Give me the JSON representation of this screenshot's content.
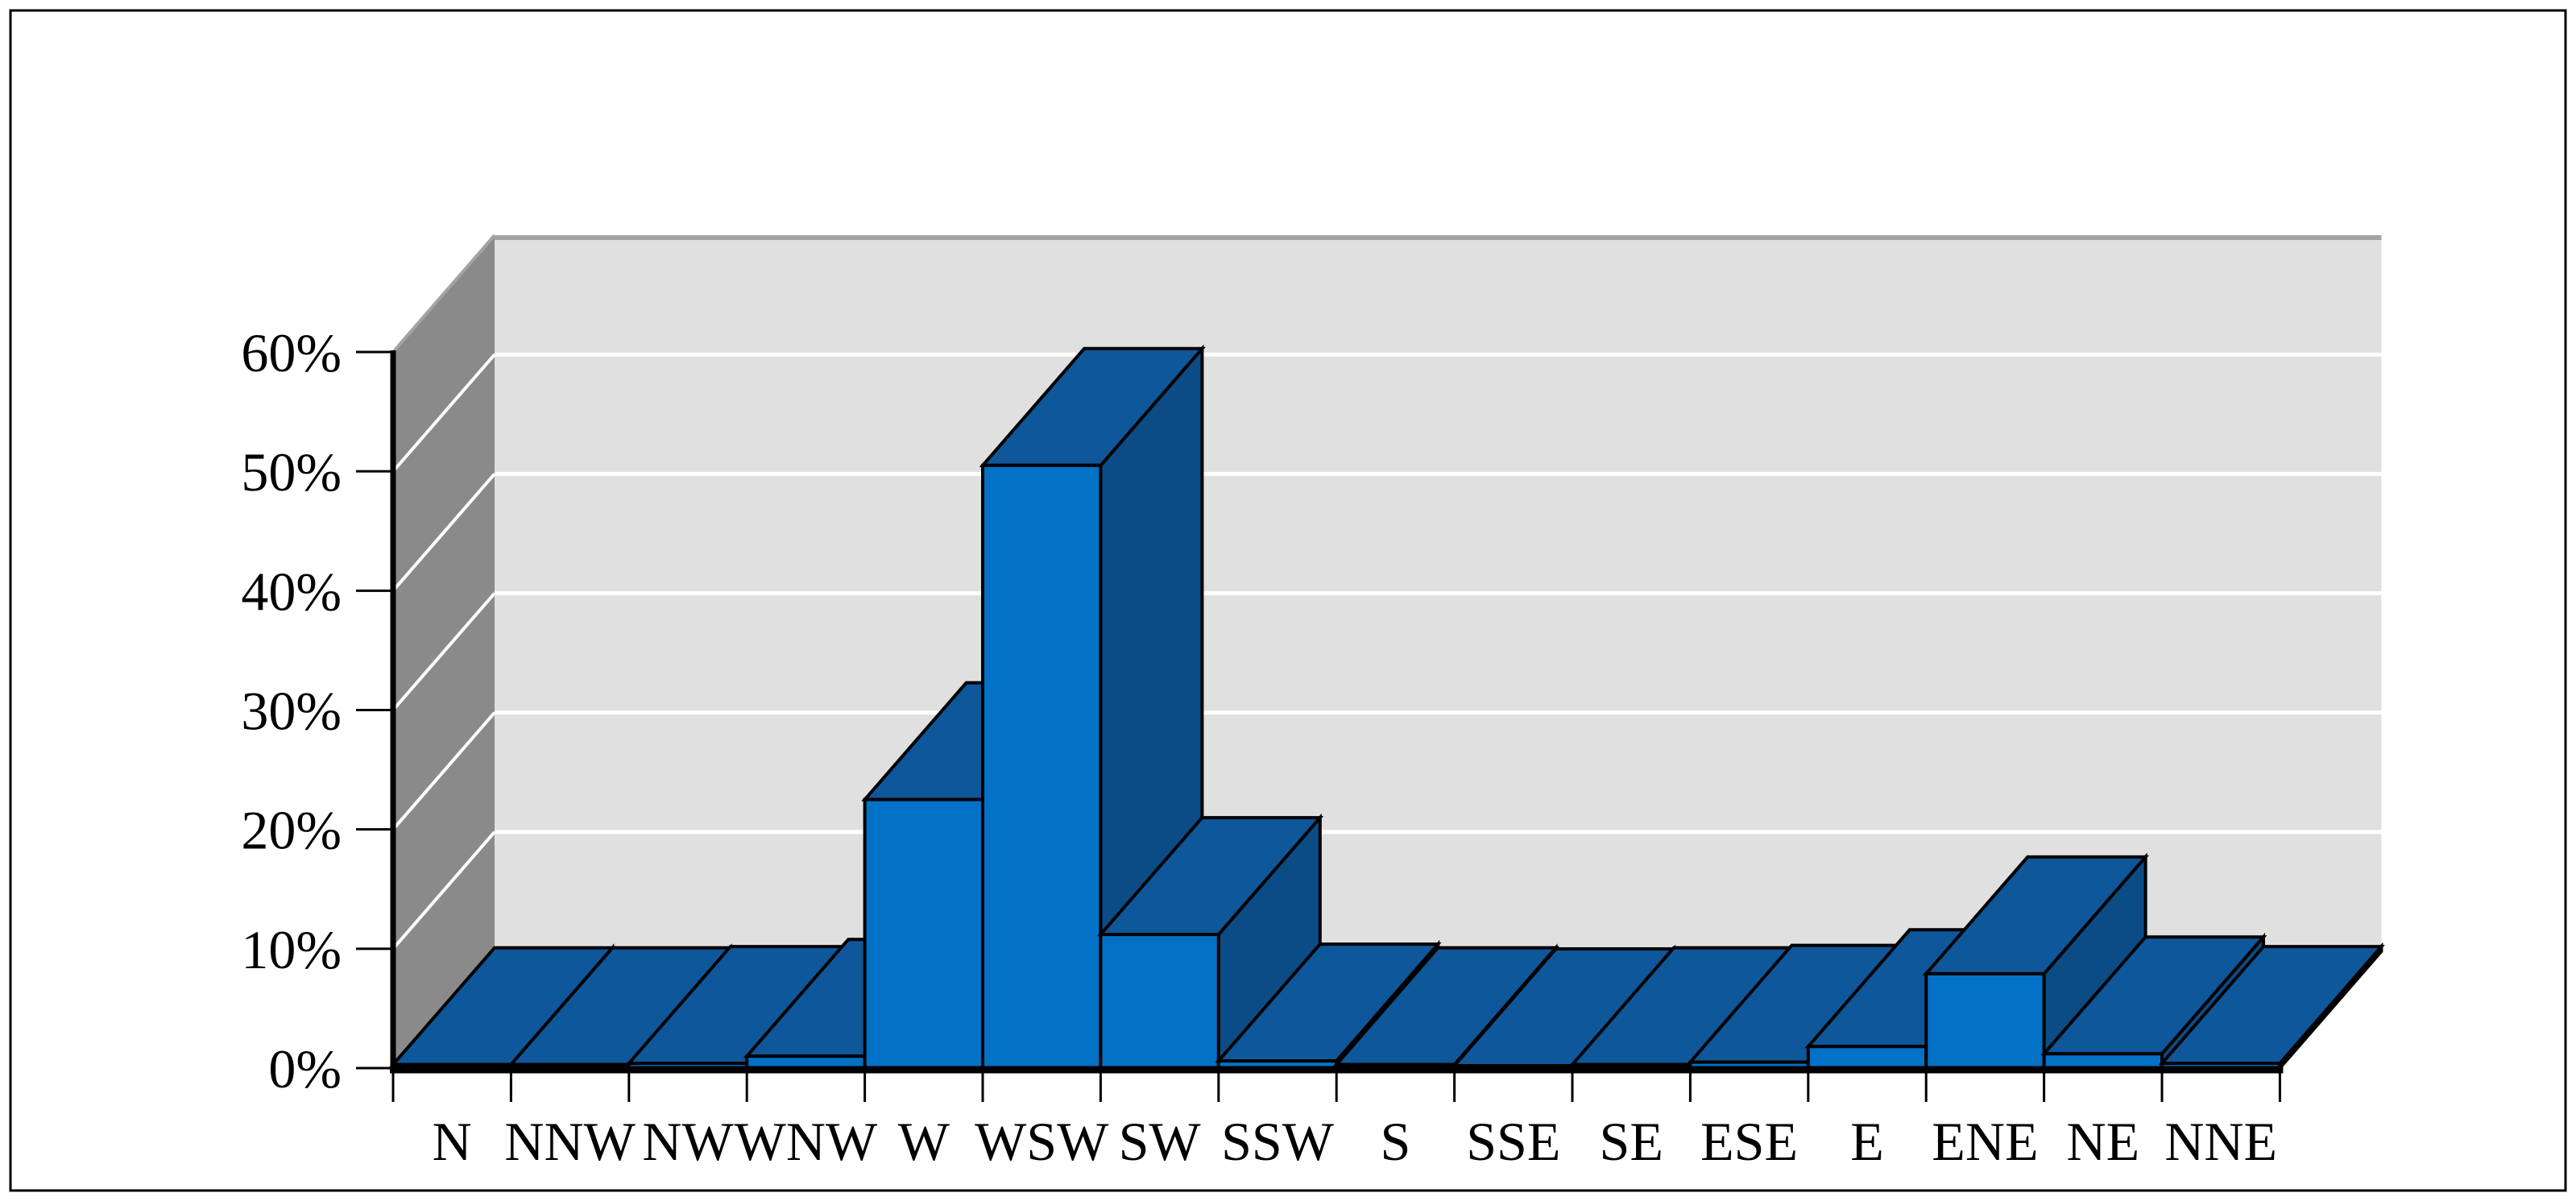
{
  "figure": {
    "background": "#FFFFFF",
    "border_color": "#000000",
    "title": ""
  },
  "chart_data": {
    "type": "bar",
    "style": "3d-column",
    "title": "",
    "xlabel": "",
    "ylabel": "",
    "categories": [
      "N",
      "NNW",
      "NW",
      "WNW",
      "W",
      "WSW",
      "SW",
      "SSW",
      "S",
      "SSE",
      "SE",
      "ESE",
      "E",
      "ENE",
      "NE",
      "NNE"
    ],
    "values": [
      0.3,
      0.3,
      0.4,
      1.0,
      22.5,
      50.5,
      11.2,
      0.6,
      0.3,
      0.2,
      0.3,
      0.5,
      1.8,
      7.9,
      1.2,
      0.4
    ],
    "unit": "%",
    "ylim": [
      0,
      60
    ],
    "ytick_step": 10,
    "ytick_labels": [
      "0%",
      "10%",
      "20%",
      "30%",
      "40%",
      "50%",
      "60%"
    ],
    "grid": true,
    "legend": false,
    "colors": {
      "bar_front": "#0271C6",
      "bar_top": "#0E579B",
      "bar_side": "#0C4C86",
      "bar_outline": "#000000",
      "wall_back": "#E0E0E0",
      "wall_left": "#8A8A8A",
      "wall_edge": "#A3A3A3",
      "floor": "#C9C9C9",
      "gridline": "#FFFFFF",
      "axis": "#000000",
      "label_color": "#000000"
    }
  }
}
